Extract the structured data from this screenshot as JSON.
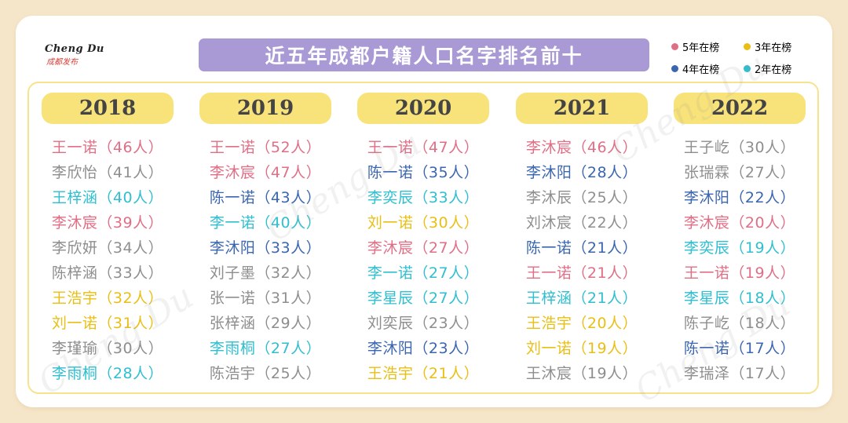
{
  "logo": {
    "text_en": "Cheng Du",
    "text_cn": "成都发布"
  },
  "title": "近五年成都户籍人口名字排名前十",
  "legend": [
    {
      "label": "5年在榜",
      "color": "#e06f86"
    },
    {
      "label": "3年在榜",
      "color": "#e9bf14"
    },
    {
      "label": "4年在榜",
      "color": "#3a66b0"
    },
    {
      "label": "2年在榜",
      "color": "#2fbfd0"
    }
  ],
  "years": [
    {
      "year": "2018",
      "names": [
        {
          "text": "王一诺（46人）",
          "tier": "5"
        },
        {
          "text": "李欣怡（41人）",
          "tier": "0"
        },
        {
          "text": "王梓涵（40人）",
          "tier": "2"
        },
        {
          "text": "李沐宸（39人）",
          "tier": "5"
        },
        {
          "text": "李欣妍（34人）",
          "tier": "0"
        },
        {
          "text": "陈梓涵（33人）",
          "tier": "0"
        },
        {
          "text": "王浩宇（32人）",
          "tier": "3"
        },
        {
          "text": "刘一诺（31人）",
          "tier": "3"
        },
        {
          "text": "李瑾瑜（30人）",
          "tier": "0"
        },
        {
          "text": "李雨桐（28人）",
          "tier": "2"
        }
      ]
    },
    {
      "year": "2019",
      "names": [
        {
          "text": "王一诺（52人）",
          "tier": "5"
        },
        {
          "text": "李沐宸（47人）",
          "tier": "5"
        },
        {
          "text": "陈一诺（43人）",
          "tier": "4"
        },
        {
          "text": "李一诺（40人）",
          "tier": "2"
        },
        {
          "text": "李沐阳（33人）",
          "tier": "4"
        },
        {
          "text": "刘子墨（32人）",
          "tier": "0"
        },
        {
          "text": "张一诺（31人）",
          "tier": "0"
        },
        {
          "text": "张梓涵（29人）",
          "tier": "0"
        },
        {
          "text": "李雨桐（27人）",
          "tier": "2"
        },
        {
          "text": "陈浩宇（25人）",
          "tier": "0"
        }
      ]
    },
    {
      "year": "2020",
      "names": [
        {
          "text": "王一诺（47人）",
          "tier": "5"
        },
        {
          "text": "陈一诺（35人）",
          "tier": "4"
        },
        {
          "text": "李奕辰（33人）",
          "tier": "2"
        },
        {
          "text": "刘一诺（30人）",
          "tier": "3"
        },
        {
          "text": "李沐宸（27人）",
          "tier": "5"
        },
        {
          "text": "李一诺（27人）",
          "tier": "2"
        },
        {
          "text": "李星辰（27人）",
          "tier": "2"
        },
        {
          "text": "刘奕辰（23人）",
          "tier": "0"
        },
        {
          "text": "李沐阳（23人）",
          "tier": "4"
        },
        {
          "text": "王浩宇（21人）",
          "tier": "3"
        }
      ]
    },
    {
      "year": "2021",
      "names": [
        {
          "text": "李沐宸（46人）",
          "tier": "5"
        },
        {
          "text": "李沐阳（28人）",
          "tier": "4"
        },
        {
          "text": "李沐辰（25人）",
          "tier": "0"
        },
        {
          "text": "刘沐宸（22人）",
          "tier": "0"
        },
        {
          "text": "陈一诺（21人）",
          "tier": "4"
        },
        {
          "text": "王一诺（21人）",
          "tier": "5"
        },
        {
          "text": "王梓涵（21人）",
          "tier": "2"
        },
        {
          "text": "王浩宇（20人）",
          "tier": "3"
        },
        {
          "text": "刘一诺（19人）",
          "tier": "3"
        },
        {
          "text": "王沐宸（19人）",
          "tier": "0"
        }
      ]
    },
    {
      "year": "2022",
      "names": [
        {
          "text": "王子屹（30人）",
          "tier": "0"
        },
        {
          "text": "张瑞霖（27人）",
          "tier": "0"
        },
        {
          "text": "李沐阳（22人）",
          "tier": "4"
        },
        {
          "text": "李沐宸（20人）",
          "tier": "5"
        },
        {
          "text": "李奕辰（19人）",
          "tier": "2"
        },
        {
          "text": "王一诺（19人）",
          "tier": "5"
        },
        {
          "text": "李星辰（18人）",
          "tier": "2"
        },
        {
          "text": "陈子屹（18人）",
          "tier": "0"
        },
        {
          "text": "陈一诺（17人）",
          "tier": "4"
        },
        {
          "text": "李瑞泽（17人）",
          "tier": "0"
        }
      ]
    }
  ],
  "watermark": "Cheng Du"
}
